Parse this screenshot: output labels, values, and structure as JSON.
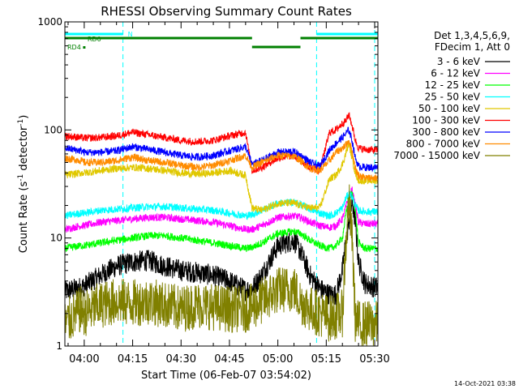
{
  "chart_data": {
    "type": "line",
    "title": "RHESSI Observing Summary Count Rates",
    "xlabel": "Start Time (06-Feb-07 03:54:02)",
    "ylabel_main": "Count Rate (s",
    "ylabel_sup1": "-1",
    "ylabel_mid": " detector",
    "ylabel_sup2": "-1",
    "ylabel_end": ")",
    "yscale": "log",
    "xlim": [
      "03:54",
      "05:31"
    ],
    "ylim": [
      1,
      1000
    ],
    "x_ticks": [
      "04:00",
      "04:15",
      "04:30",
      "04:45",
      "05:00",
      "05:15",
      "05:30"
    ],
    "y_ticks": [
      "1",
      "10",
      "100",
      "1000"
    ],
    "legend_header": [
      "Det 1,3,4,5,6,9,",
      "FDecim 1, Att 0"
    ],
    "timestamp": "14-Oct-2021 03:38",
    "flags": [
      {
        "label": "N",
        "color": "#00ffff"
      },
      {
        "label": "RD0",
        "color": "#008000"
      },
      {
        "label": "RD4",
        "color": "#008000"
      }
    ],
    "series": [
      {
        "name": "3 - 6 keV",
        "color": "#000000"
      },
      {
        "name": "6 - 12 keV",
        "color": "#ff00ff"
      },
      {
        "name": "12 - 25 keV",
        "color": "#00ff00"
      },
      {
        "name": "25 - 50 keV",
        "color": "#00ffff"
      },
      {
        "name": "50 - 100 keV",
        "color": "#e0c800"
      },
      {
        "name": "100 - 300 keV",
        "color": "#ff0000"
      },
      {
        "name": "300 - 800 keV",
        "color": "#0000ff"
      },
      {
        "name": "800 - 7000 keV",
        "color": "#ff8c00"
      },
      {
        "name": "7000 - 15000 keV",
        "color": "#808000"
      }
    ],
    "series_shape": {
      "times": [
        "03:54",
        "03:59",
        "04:00",
        "04:05",
        "04:10",
        "04:15",
        "04:20",
        "04:25",
        "04:30",
        "04:35",
        "04:40",
        "04:45",
        "04:50",
        "04:52",
        "04:55",
        "05:00",
        "05:05",
        "05:07",
        "05:10",
        "05:13",
        "05:16",
        "05:18",
        "05:20",
        "05:21",
        "05:22",
        "05:23",
        "05:24",
        "05:25",
        "05:27",
        "05:30"
      ],
      "3 - 6 keV": [
        3.2,
        3.5,
        3.6,
        4.5,
        5.5,
        6.0,
        6.2,
        5.5,
        5.0,
        4.8,
        4.5,
        4.0,
        3.3,
        3.4,
        4.5,
        8.5,
        9.5,
        7.5,
        4.5,
        3.4,
        3.0,
        3.0,
        5.0,
        9.0,
        14,
        22,
        14,
        6.0,
        3.8,
        3.5
      ],
      "6 - 12 keV": [
        12,
        13,
        13,
        14,
        14.5,
        15,
        15.5,
        15.5,
        15,
        14.5,
        14,
        13,
        12,
        12,
        13,
        15.5,
        16,
        15.5,
        14,
        13,
        12.5,
        13,
        15,
        19,
        24,
        28,
        20,
        14,
        13.5,
        13.5
      ],
      "12 - 25 keV": [
        8,
        8.5,
        8.5,
        9,
        9.5,
        10,
        10.5,
        10.5,
        10,
        9.5,
        9,
        8.5,
        8,
        8.2,
        9,
        11,
        11.5,
        11,
        9.5,
        8.5,
        8,
        8.5,
        10,
        16,
        24,
        26,
        18,
        9,
        8,
        8
      ],
      "25 - 50 keV": [
        16,
        17,
        17,
        18,
        18.5,
        19,
        19.5,
        19.5,
        19,
        18.5,
        18,
        17,
        16,
        16.5,
        18,
        21,
        21.5,
        20.5,
        18.5,
        17,
        16,
        17,
        19,
        23,
        26,
        24,
        20,
        18,
        17.5,
        17.5
      ],
      "50 - 100 keV": [
        38,
        40,
        40,
        42,
        44,
        45,
        44,
        42,
        40,
        39,
        40,
        42,
        38,
        19,
        18,
        21,
        21,
        20,
        19,
        19,
        35,
        38,
        48,
        60,
        75,
        55,
        40,
        34,
        34,
        34
      ],
      "100 - 300 keV": [
        88,
        85,
        84,
        85,
        88,
        95,
        90,
        85,
        80,
        78,
        80,
        88,
        95,
        42,
        45,
        55,
        58,
        52,
        45,
        42,
        95,
        100,
        115,
        120,
        140,
        110,
        80,
        68,
        66,
        65
      ],
      "300 - 800 keV": [
        68,
        64,
        62,
        62,
        64,
        70,
        66,
        62,
        58,
        56,
        58,
        64,
        70,
        48,
        52,
        62,
        63,
        58,
        50,
        46,
        65,
        75,
        85,
        92,
        100,
        80,
        55,
        46,
        45,
        45
      ],
      "800 - 7000 keV": [
        55,
        52,
        50,
        50,
        52,
        56,
        52,
        50,
        47,
        45,
        47,
        52,
        58,
        45,
        50,
        58,
        57,
        52,
        44,
        42,
        52,
        62,
        68,
        72,
        80,
        64,
        44,
        38,
        36,
        36
      ],
      "7000 - 15000 keV": [
        1.6,
        2.2,
        2.0,
        2.4,
        2.6,
        2.5,
        2.6,
        2.4,
        2.2,
        2.4,
        2.3,
        2.2,
        2.2,
        2.3,
        2.6,
        3.3,
        3.4,
        2.6,
        2.2,
        2.0,
        1.8,
        1.9,
        2.0,
        8,
        22,
        10,
        1.8,
        1.6,
        1.6,
        1.6
      ]
    }
  }
}
